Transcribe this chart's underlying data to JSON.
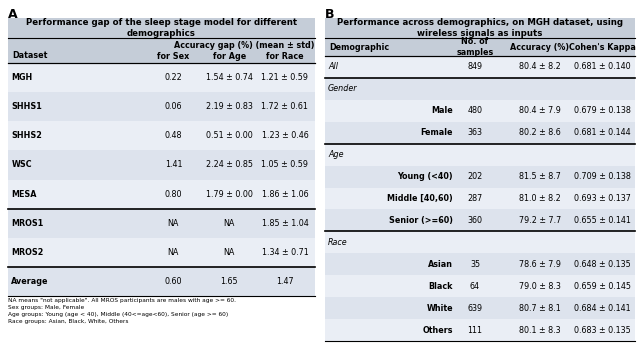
{
  "panel_A": {
    "title": "Performance gap of the sleep stage model for different\ndemographics",
    "header1": "Accuracy gap (%) (mean ± std)",
    "col_headers": [
      "Dataset",
      "for Sex",
      "for Age",
      "for Race"
    ],
    "rows": [
      [
        "MGH",
        "0.22",
        "1.54 ± 0.74",
        "1.21 ± 0.59"
      ],
      [
        "SHHS1",
        "0.06",
        "2.19 ± 0.83",
        "1.72 ± 0.61"
      ],
      [
        "SHHS2",
        "0.48",
        "0.51 ± 0.00",
        "1.23 ± 0.46"
      ],
      [
        "WSC",
        "1.41",
        "2.24 ± 0.85",
        "1.05 ± 0.59"
      ],
      [
        "MESA",
        "0.80",
        "1.79 ± 0.00",
        "1.86 ± 1.06"
      ],
      [
        "MROS1",
        "NA",
        "NA",
        "1.85 ± 1.04"
      ],
      [
        "MROS2",
        "NA",
        "NA",
        "1.34 ± 0.71"
      ],
      [
        "Average",
        "0.60",
        "1.65",
        "1.47"
      ]
    ],
    "separator_after": [
      4,
      6
    ],
    "note": "NA means \"not applicable\". All MROS participants are males with age >= 60.\nSex groups: Male, Female\nAge groups: Young (age < 40), Middle (40<=age<60), Senior (age >= 60)\nRace groups: Asian, Black, White, Others",
    "title_bg": "#c5cdd8",
    "header_bg": "#c5cdd8",
    "row_bg_even": "#dde3ed",
    "row_bg_odd": "#eaeef5"
  },
  "panel_B": {
    "title": "Performance across demographics, on MGH dataset, using\nwireless signals as inputs",
    "col_headers": [
      "Demographic",
      "No. of\nsamples",
      "Accuracy (%)",
      "Cohen's Kappa"
    ],
    "rows": [
      [
        "All",
        "",
        "849",
        "80.4 ± 8.2",
        "0.681 ± 0.140"
      ],
      [
        "Gender",
        "",
        "",
        "",
        ""
      ],
      [
        "",
        "Male",
        "480",
        "80.4 ± 7.9",
        "0.679 ± 0.138"
      ],
      [
        "",
        "Female",
        "363",
        "80.2 ± 8.6",
        "0.681 ± 0.144"
      ],
      [
        "Age",
        "",
        "",
        "",
        ""
      ],
      [
        "",
        "Young (<40)",
        "202",
        "81.5 ± 8.7",
        "0.709 ± 0.138"
      ],
      [
        "",
        "Middle [40,60)",
        "287",
        "81.0 ± 8.2",
        "0.693 ± 0.137"
      ],
      [
        "",
        "Senior (>=60)",
        "360",
        "79.2 ± 7.7",
        "0.655 ± 0.141"
      ],
      [
        "Race",
        "",
        "",
        "",
        ""
      ],
      [
        "",
        "Asian",
        "35",
        "78.6 ± 7.9",
        "0.648 ± 0.135"
      ],
      [
        "",
        "Black",
        "64",
        "79.0 ± 8.3",
        "0.659 ± 0.145"
      ],
      [
        "",
        "White",
        "639",
        "80.7 ± 8.1",
        "0.684 ± 0.141"
      ],
      [
        "",
        "Others",
        "111",
        "80.1 ± 8.3",
        "0.683 ± 0.135"
      ]
    ],
    "separator_after": [
      0,
      3,
      7
    ],
    "title_bg": "#c5cdd8",
    "header_bg": "#c5cdd8",
    "row_bg_even": "#dde3ed",
    "row_bg_odd": "#eaeef5"
  },
  "label_A": "A",
  "label_B": "B"
}
